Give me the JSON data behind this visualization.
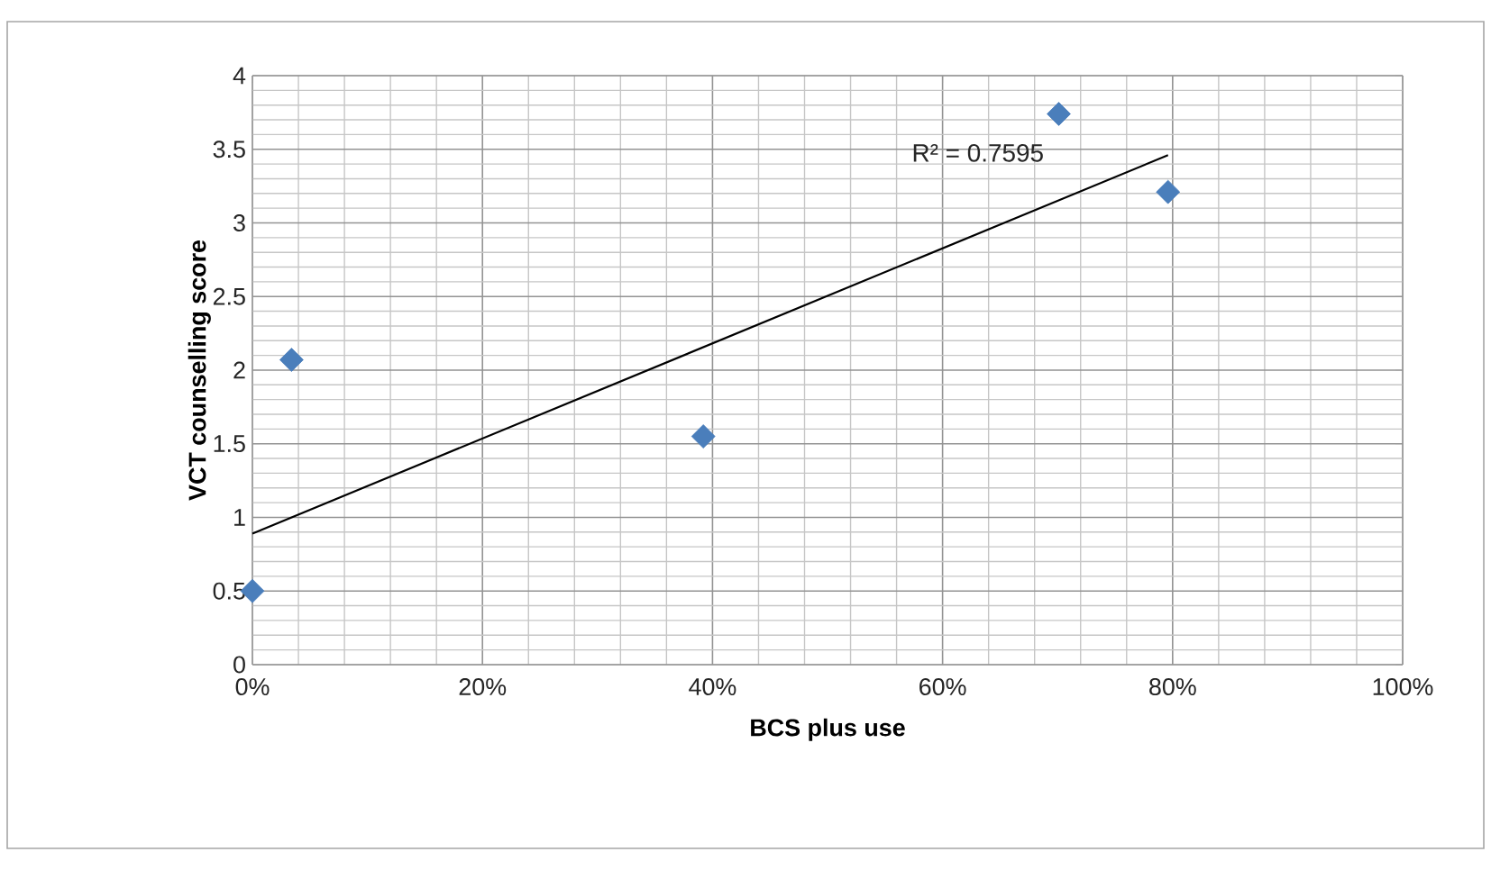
{
  "chart_data": {
    "type": "scatter",
    "xlabel": "BCS plus use",
    "ylabel": "VCT counselling score",
    "xlim": [
      0,
      100
    ],
    "ylim": [
      0,
      4
    ],
    "xticks": [
      {
        "value": 0,
        "label": "0%"
      },
      {
        "value": 20,
        "label": "20%"
      },
      {
        "value": 40,
        "label": "40%"
      },
      {
        "value": 60,
        "label": "60%"
      },
      {
        "value": 80,
        "label": "80%"
      },
      {
        "value": 100,
        "label": "100%"
      }
    ],
    "yticks": [
      0,
      0.5,
      1,
      1.5,
      2,
      2.5,
      3,
      3.5,
      4
    ],
    "grid": true,
    "marker": "diamond",
    "series": [
      {
        "color": "#4a7ebb",
        "x": [
          0,
          3.4,
          39.2,
          70.1,
          79.6
        ],
        "values": [
          0.5,
          2.07,
          1.55,
          3.74,
          3.21
        ]
      },
      {
        "type": "line",
        "color": "#000000",
        "marker": "none",
        "x": [
          0,
          79.6
        ],
        "values": [
          0.89,
          3.46
        ]
      }
    ],
    "annotations": [
      "R² = 0.7595"
    ]
  }
}
